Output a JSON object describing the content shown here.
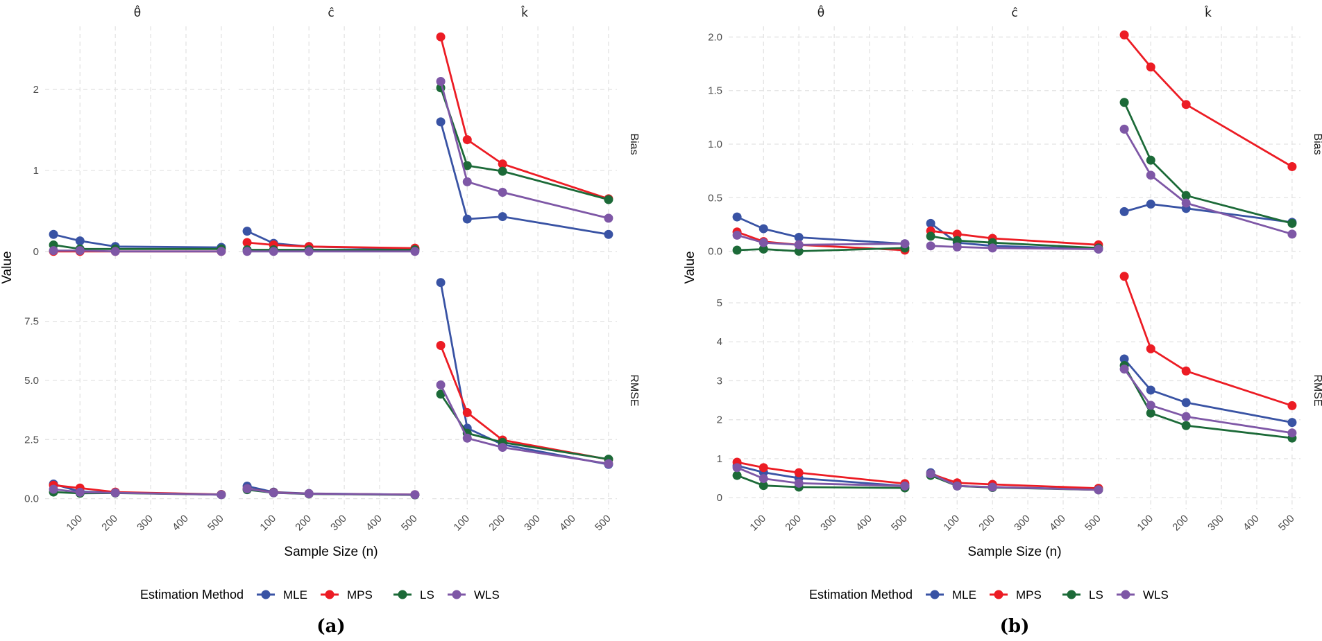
{
  "colors": {
    "MLE": "#3953a4",
    "MPS": "#ec1c24",
    "LS": "#1c6a38",
    "WLS": "#7e57a6"
  },
  "chart_data": [
    {
      "type": "line",
      "caption": "(a)",
      "xlabel": "Sample Size (n)",
      "ylabel": "Value",
      "x": [
        25,
        100,
        200,
        500
      ],
      "xticks": [
        "100",
        "200",
        "300",
        "400",
        "500"
      ],
      "xlim": [
        0,
        525
      ],
      "columns": [
        "θ̂",
        "ĉ",
        "k̂"
      ],
      "rows": [
        "Bias",
        "RMSE"
      ],
      "grid": true,
      "legend": {
        "title": "Estimation Method",
        "position": "bottom",
        "entries": [
          "MLE",
          "MPS",
          "LS",
          "WLS"
        ]
      },
      "row_axes": [
        {
          "ylim": [
            -0.13,
            2.78
          ],
          "ticks": [
            0,
            1,
            2
          ],
          "tick_labels": [
            "0",
            "1",
            "2"
          ]
        },
        {
          "ylim": [
            -0.45,
            9.6
          ],
          "ticks": [
            0,
            2.5,
            5,
            7.5
          ],
          "tick_labels": [
            "0.0",
            "2.5",
            "5.0",
            "7.5"
          ]
        }
      ],
      "panels": [
        [
          {
            "MLE": [
              0.21,
              0.13,
              0.06,
              0.05
            ],
            "MPS": [
              0.0,
              0.0,
              0.0,
              0.0
            ],
            "LS": [
              0.08,
              0.03,
              0.03,
              0.03
            ],
            "WLS": [
              0.01,
              0.01,
              0.0,
              0.0
            ]
          },
          {
            "MLE": [
              0.25,
              0.1,
              0.06,
              0.03
            ],
            "MPS": [
              0.11,
              0.08,
              0.06,
              0.04
            ],
            "LS": [
              0.02,
              0.02,
              0.02,
              0.02
            ],
            "WLS": [
              0.0,
              0.0,
              0.0,
              0.0
            ]
          },
          {
            "MLE": [
              1.6,
              0.4,
              0.43,
              0.21
            ],
            "MPS": [
              2.65,
              1.38,
              1.08,
              0.65
            ],
            "LS": [
              2.02,
              1.06,
              0.99,
              0.64
            ],
            "WLS": [
              2.1,
              0.86,
              0.73,
              0.41
            ]
          }
        ],
        [
          {
            "MLE": [
              0.62,
              0.3,
              0.26,
              0.17
            ],
            "MPS": [
              0.57,
              0.45,
              0.28,
              0.18
            ],
            "LS": [
              0.28,
              0.23,
              0.24,
              0.17
            ],
            "WLS": [
              0.4,
              0.27,
              0.25,
              0.17
            ]
          },
          {
            "MLE": [
              0.53,
              0.28,
              0.22,
              0.17
            ],
            "MPS": [
              0.42,
              0.26,
              0.21,
              0.17
            ],
            "LS": [
              0.38,
              0.25,
              0.2,
              0.16
            ],
            "WLS": [
              0.42,
              0.25,
              0.21,
              0.17
            ]
          },
          {
            "MLE": [
              9.14,
              2.98,
              2.29,
              1.45
            ],
            "MPS": [
              6.48,
              3.64,
              2.48,
              1.66
            ],
            "LS": [
              4.42,
              2.77,
              2.38,
              1.67
            ],
            "WLS": [
              4.81,
              2.56,
              2.17,
              1.48
            ]
          }
        ]
      ]
    },
    {
      "type": "line",
      "caption": "(b)",
      "xlabel": "Sample Size (n)",
      "ylabel": "Value",
      "x": [
        25,
        100,
        200,
        500
      ],
      "xticks": [
        "100",
        "200",
        "300",
        "400",
        "500"
      ],
      "xlim": [
        0,
        525
      ],
      "columns": [
        "θ̂",
        "ĉ",
        "k̂"
      ],
      "rows": [
        "Bias",
        "RMSE"
      ],
      "grid": true,
      "legend": {
        "title": "Estimation Method",
        "position": "bottom",
        "entries": [
          "MLE",
          "MPS",
          "LS",
          "WLS"
        ]
      },
      "row_axes": [
        {
          "ylim": [
            -0.1,
            2.1
          ],
          "ticks": [
            0,
            0.5,
            1,
            1.5,
            2
          ],
          "tick_labels": [
            "0.0",
            "0.5",
            "1.0",
            "1.5",
            "2.0"
          ]
        },
        {
          "ylim": [
            -0.3,
            5.8
          ],
          "ticks": [
            0,
            1,
            2,
            3,
            4,
            5
          ],
          "tick_labels": [
            "0",
            "1",
            "2",
            "3",
            "4",
            "5"
          ]
        }
      ],
      "panels": [
        [
          {
            "MLE": [
              0.32,
              0.21,
              0.13,
              0.07
            ],
            "MPS": [
              0.18,
              0.09,
              0.06,
              0.01
            ],
            "LS": [
              0.01,
              0.02,
              0.0,
              0.03
            ],
            "WLS": [
              0.15,
              0.08,
              0.06,
              0.07
            ]
          },
          {
            "MLE": [
              0.26,
              0.08,
              0.05,
              0.02
            ],
            "MPS": [
              0.19,
              0.16,
              0.12,
              0.06
            ],
            "LS": [
              0.14,
              0.1,
              0.08,
              0.03
            ],
            "WLS": [
              0.05,
              0.04,
              0.03,
              0.02
            ]
          },
          {
            "MLE": [
              0.37,
              0.44,
              0.4,
              0.27
            ],
            "MPS": [
              2.02,
              1.72,
              1.37,
              0.79
            ],
            "LS": [
              1.39,
              0.85,
              0.52,
              0.26
            ],
            "WLS": [
              1.14,
              0.71,
              0.45,
              0.16
            ]
          }
        ],
        [
          {
            "MLE": [
              0.82,
              0.65,
              0.5,
              0.3
            ],
            "MPS": [
              0.91,
              0.77,
              0.64,
              0.36
            ],
            "LS": [
              0.57,
              0.31,
              0.27,
              0.25
            ],
            "WLS": [
              0.77,
              0.49,
              0.37,
              0.3
            ]
          },
          {
            "MLE": [
              0.64,
              0.3,
              0.27,
              0.21
            ],
            "MPS": [
              0.61,
              0.38,
              0.34,
              0.24
            ],
            "LS": [
              0.57,
              0.3,
              0.26,
              0.2
            ],
            "WLS": [
              0.61,
              0.3,
              0.27,
              0.2
            ]
          },
          {
            "MLE": [
              3.56,
              2.76,
              2.44,
              1.93
            ],
            "MPS": [
              5.68,
              3.82,
              3.25,
              2.36
            ],
            "LS": [
              3.39,
              2.17,
              1.85,
              1.53
            ],
            "WLS": [
              3.3,
              2.37,
              2.08,
              1.66
            ]
          }
        ]
      ]
    }
  ]
}
